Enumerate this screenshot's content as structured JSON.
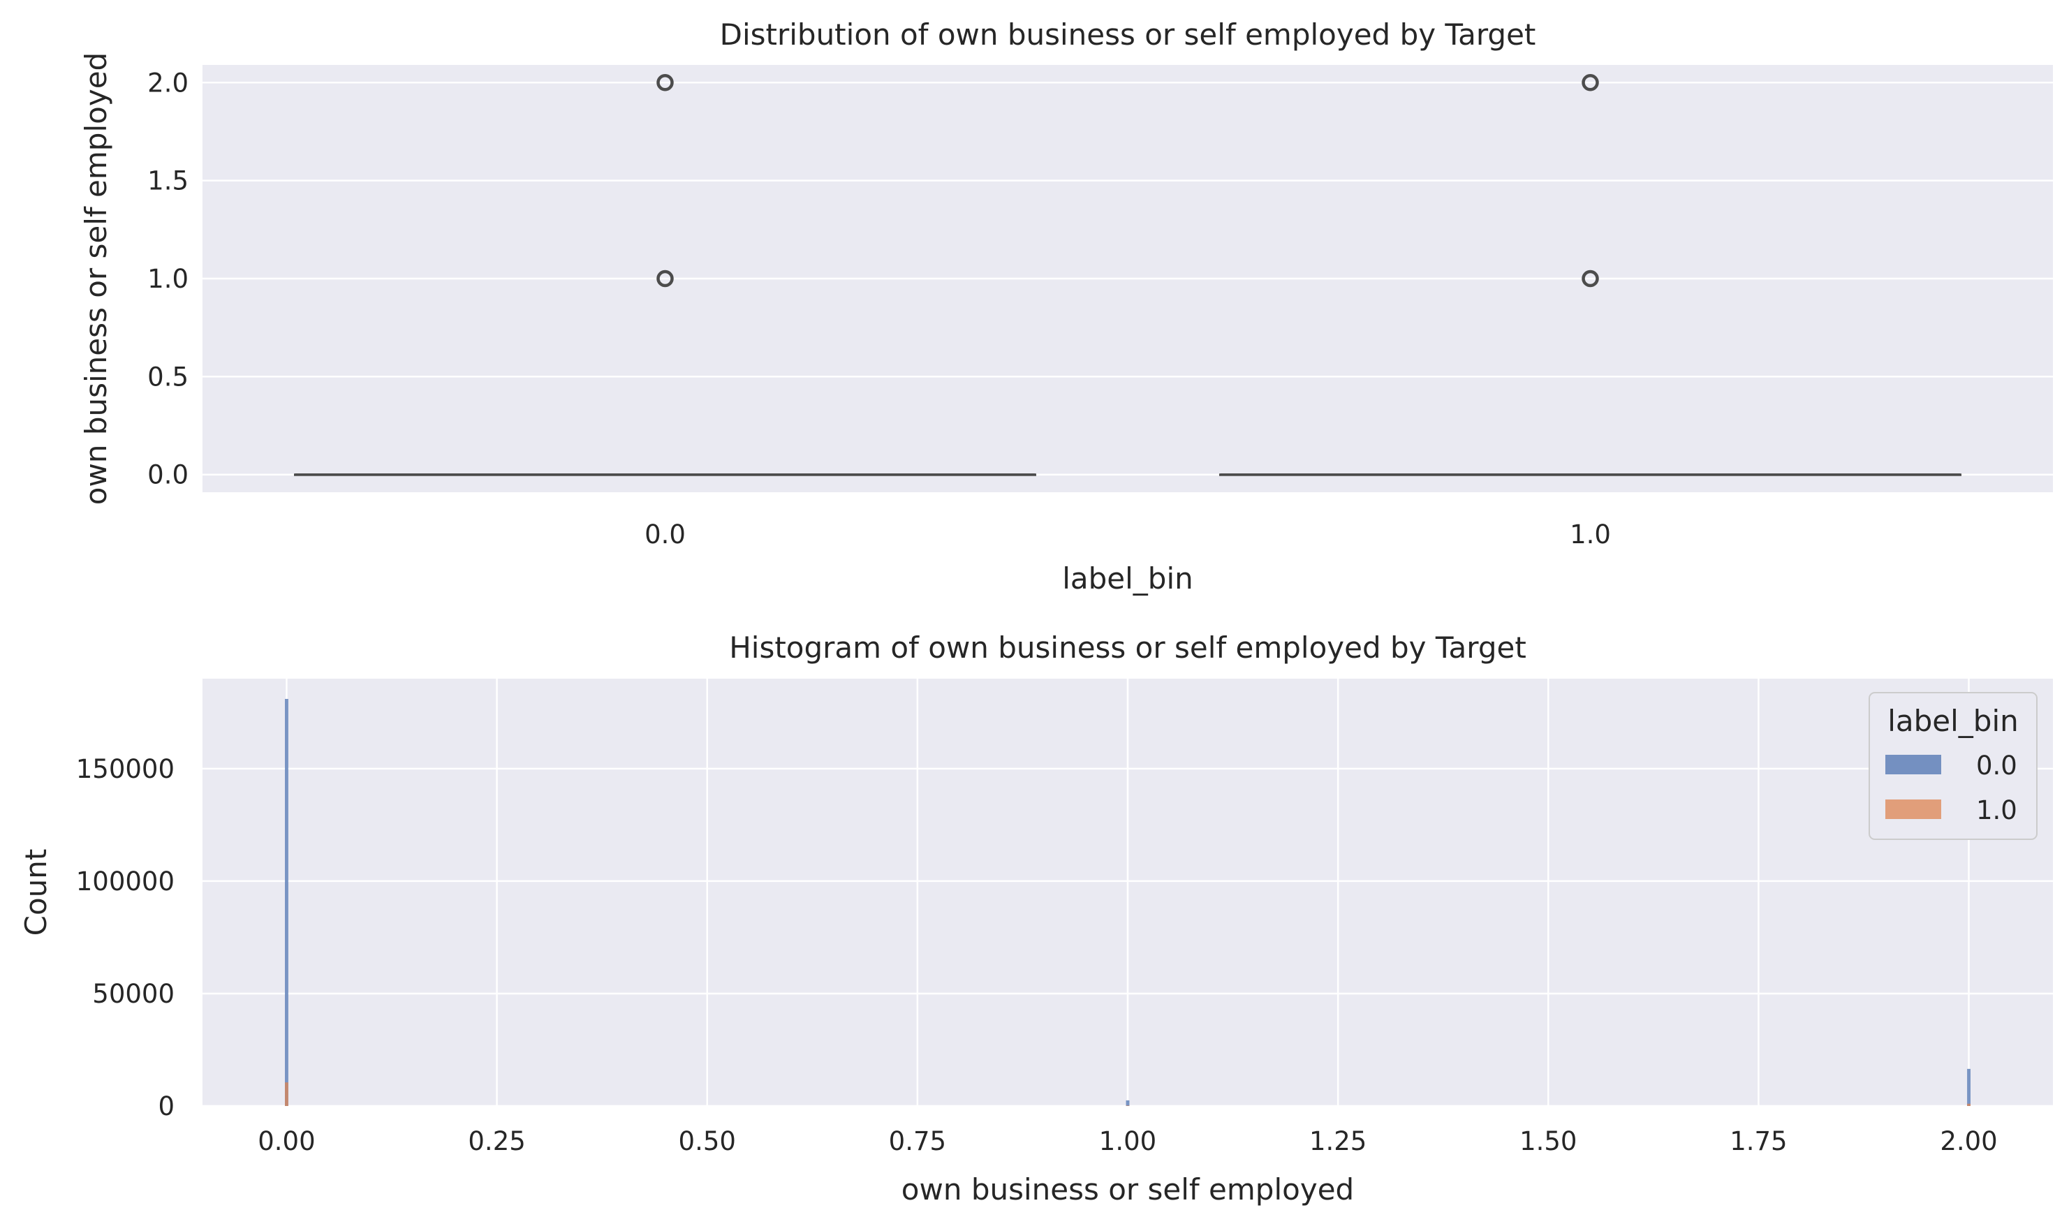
{
  "chart_data": [
    {
      "type": "box",
      "title": "Distribution of own business or self employed by Target",
      "xlabel": "label_bin",
      "ylabel": "own business or self employed",
      "categories": [
        "0.0",
        "1.0"
      ],
      "ylim": [
        -0.09,
        2.09
      ],
      "yticks": [
        0.0,
        0.5,
        1.0,
        1.5,
        2.0
      ],
      "ytick_labels": [
        "0.0",
        "0.5",
        "1.0",
        "1.5",
        "2.0"
      ],
      "boxes": [
        {
          "category": "0.0",
          "q1": 0,
          "median": 0,
          "q3": 0,
          "whisker_low": 0,
          "whisker_high": 0,
          "outliers": [
            1.0,
            2.0
          ]
        },
        {
          "category": "1.0",
          "q1": 0,
          "median": 0,
          "q3": 0,
          "whisker_low": 0,
          "whisker_high": 0,
          "outliers": [
            1.0,
            2.0
          ]
        }
      ],
      "grid": true,
      "colors": {
        "background": "#eaeaf2",
        "grid": "#ffffff",
        "line": "#4c4c4c"
      }
    },
    {
      "type": "histogram",
      "title": "Histogram of own business or self employed by Target",
      "xlabel": "own business or self employed",
      "ylabel": "Count",
      "xlim": [
        -0.1,
        2.1
      ],
      "ylim": [
        0,
        190000
      ],
      "xticks": [
        0.0,
        0.25,
        0.5,
        0.75,
        1.0,
        1.25,
        1.5,
        1.75,
        2.0
      ],
      "xtick_labels": [
        "0.00",
        "0.25",
        "0.50",
        "0.75",
        "1.00",
        "1.25",
        "1.50",
        "1.75",
        "2.00"
      ],
      "yticks": [
        0,
        50000,
        100000,
        150000
      ],
      "ytick_labels": [
        "0",
        "50000",
        "100000",
        "150000"
      ],
      "bin_width": 0.004,
      "series": [
        {
          "name": "0.0",
          "color": "#4c72b0",
          "x": [
            0.0,
            1.0,
            2.0
          ],
          "values": [
            181000,
            2500,
            16500
          ]
        },
        {
          "name": "1.0",
          "color": "#dd8452",
          "x": [
            0.0,
            1.0,
            2.0
          ],
          "values": [
            10500,
            200,
            1000
          ]
        }
      ],
      "legend": {
        "title": "label_bin",
        "placement": "top-right"
      },
      "grid": true
    }
  ]
}
